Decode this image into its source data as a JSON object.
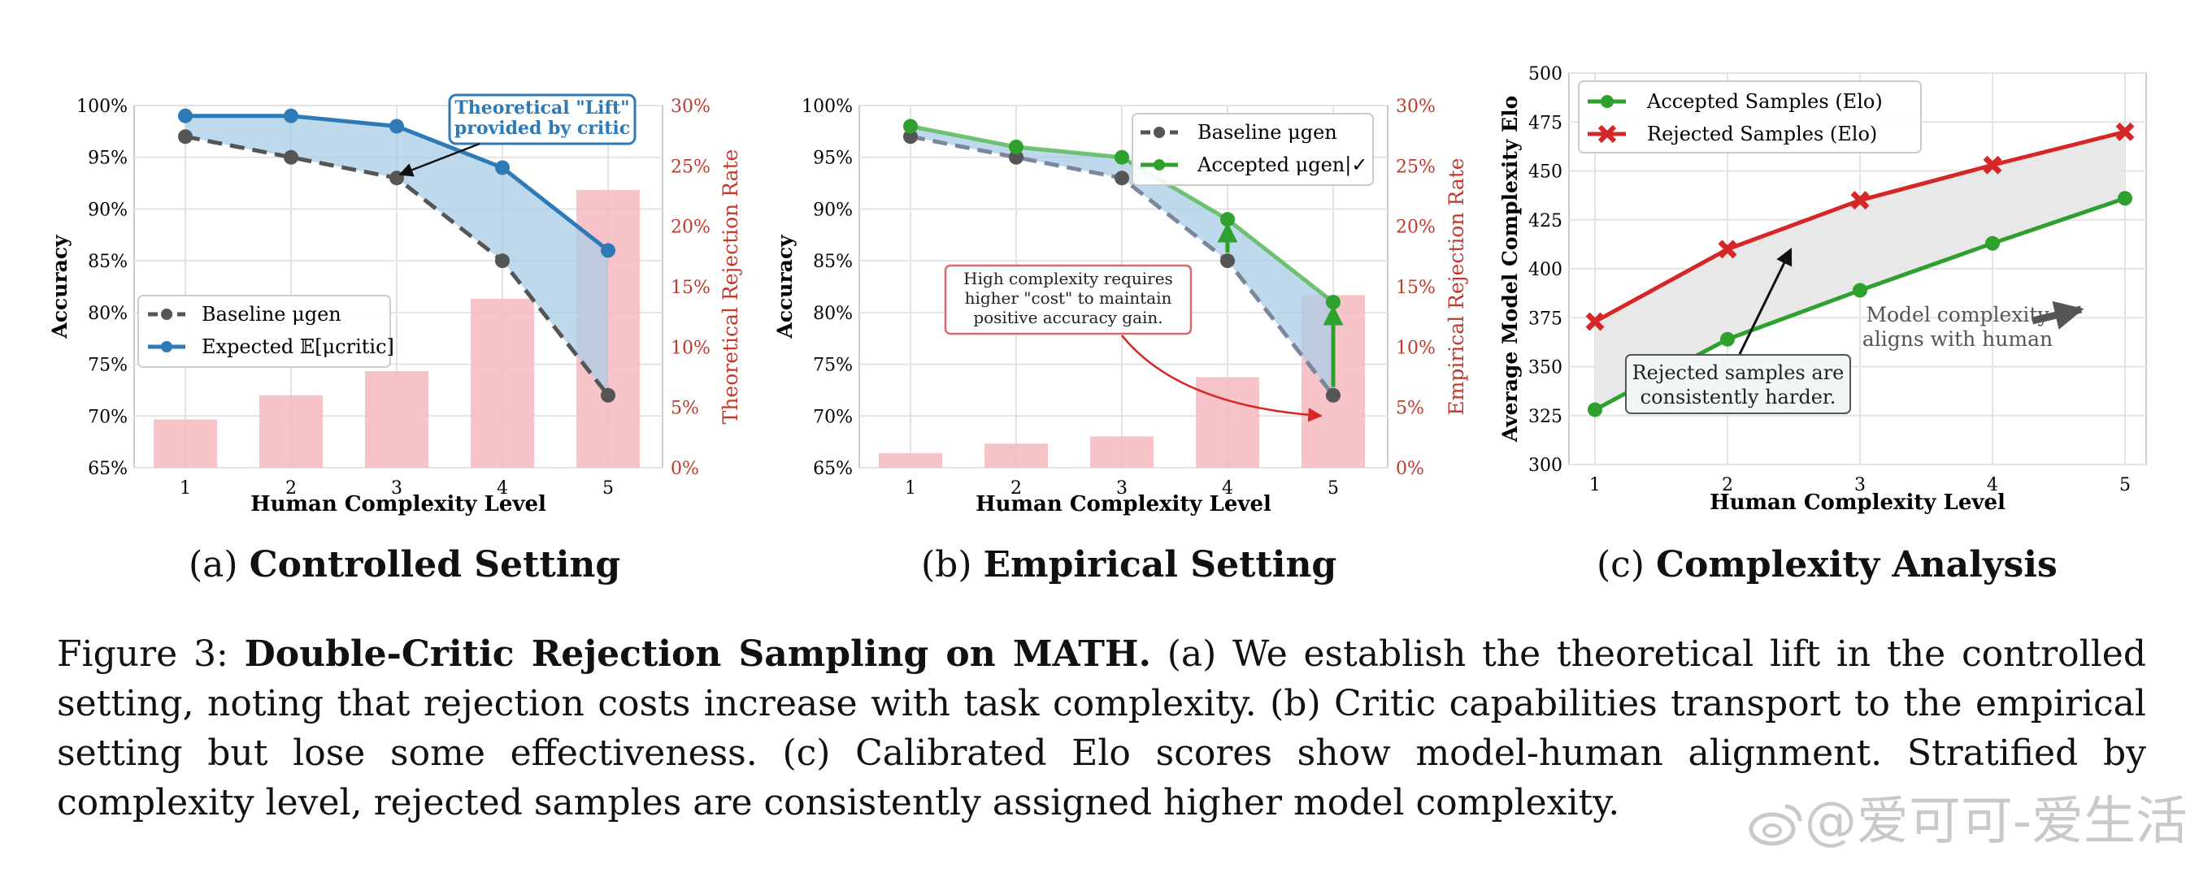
{
  "figure_number": "Figure 3:",
  "caption": {
    "title": "Double-Critic Rejection Sampling on MATH.",
    "body": "(a) We establish the theoretical lift in the controlled setting, noting that rejection costs increase with task complexity. (b) Critic capabilities transport to the empirical setting but lose some effectiveness. (c) Calibrated Elo scores show model-human alignment. Stratified by complexity level, rejected samples are consistently assigned higher model complexity."
  },
  "subcaptions": [
    {
      "tag": "(a)",
      "label": "Controlled Setting"
    },
    {
      "tag": "(b)",
      "label": "Empirical Setting"
    },
    {
      "tag": "(c)",
      "label": "Complexity Analysis"
    }
  ],
  "watermark": "@爱可可-爱生活",
  "colors": {
    "baseline": "#555555",
    "expected": "#2e7ab6",
    "accepted": "#2ea02e",
    "rejected": "#d62728",
    "bars": "#f5b8bf",
    "fill_blue": "#a9cce6",
    "fill_gray": "#e6e6e6",
    "axis_red": "#c0392b"
  },
  "chart_data": [
    {
      "type": "line+bar",
      "title": "",
      "xlabel": "Human Complexity Level",
      "ylabel": "Accuracy",
      "y2label": "Theoretical Rejection Rate",
      "x": [
        1,
        2,
        3,
        4,
        5
      ],
      "xticks": [
        "1",
        "2",
        "3",
        "4",
        "5"
      ],
      "ylim": [
        65,
        100
      ],
      "yticks": [
        "65%",
        "70%",
        "75%",
        "80%",
        "85%",
        "90%",
        "95%",
        "100%"
      ],
      "y2lim": [
        0,
        30
      ],
      "y2ticks": [
        "0%",
        "5%",
        "10%",
        "15%",
        "20%",
        "25%",
        "30%"
      ],
      "series": [
        {
          "name": "Baseline μgen",
          "values": [
            97,
            95,
            93,
            85,
            72
          ],
          "style": "dashed"
        },
        {
          "name": "Expected 𝔼[μcritic]",
          "values": [
            99,
            99,
            98,
            94,
            86
          ],
          "style": "solid"
        }
      ],
      "bars": {
        "name": "Theoretical Rejection Rate",
        "values": [
          4,
          6,
          8,
          14,
          23
        ]
      },
      "legend": "center-left",
      "annotation": "Theoretical \"Lift\" provided by critic"
    },
    {
      "type": "line+bar",
      "title": "",
      "xlabel": "Human Complexity Level",
      "ylabel": "Accuracy",
      "y2label": "Empirical Rejection Rate",
      "x": [
        1,
        2,
        3,
        4,
        5
      ],
      "xticks": [
        "1",
        "2",
        "3",
        "4",
        "5"
      ],
      "ylim": [
        65,
        100
      ],
      "yticks": [
        "65%",
        "70%",
        "75%",
        "80%",
        "85%",
        "90%",
        "95%",
        "100%"
      ],
      "y2lim": [
        0,
        30
      ],
      "y2ticks": [
        "0%",
        "5%",
        "10%",
        "15%",
        "20%",
        "25%",
        "30%"
      ],
      "series": [
        {
          "name": "Baseline μgen",
          "values": [
            97,
            95,
            93,
            85,
            72
          ],
          "style": "dashed"
        },
        {
          "name": "Accepted μgen|✓",
          "values": [
            98,
            96,
            95,
            89,
            81
          ],
          "style": "solid"
        }
      ],
      "bars": {
        "name": "Empirical Rejection Rate",
        "values": [
          1.2,
          2,
          2.6,
          7.5,
          14.3
        ]
      },
      "legend": "top-right",
      "annotation": "High complexity requires higher \"cost\" to maintain positive accuracy gain."
    },
    {
      "type": "line",
      "title": "",
      "xlabel": "Human Complexity Level",
      "ylabel": "Average Model Complexity Elo",
      "x": [
        1,
        2,
        3,
        4,
        5
      ],
      "xticks": [
        "1",
        "2",
        "3",
        "4",
        "5"
      ],
      "ylim": [
        300,
        500
      ],
      "yticks": [
        "300",
        "325",
        "350",
        "375",
        "400",
        "425",
        "450",
        "475",
        "500"
      ],
      "series": [
        {
          "name": "Accepted Samples (Elo)",
          "values": [
            328,
            364,
            389,
            413,
            436
          ]
        },
        {
          "name": "Rejected Samples (Elo)",
          "values": [
            373,
            410,
            435,
            453,
            470
          ]
        }
      ],
      "legend": "top-left",
      "annotations": [
        "Rejected samples are consistently harder.",
        "Model complexity aligns with human"
      ]
    }
  ]
}
